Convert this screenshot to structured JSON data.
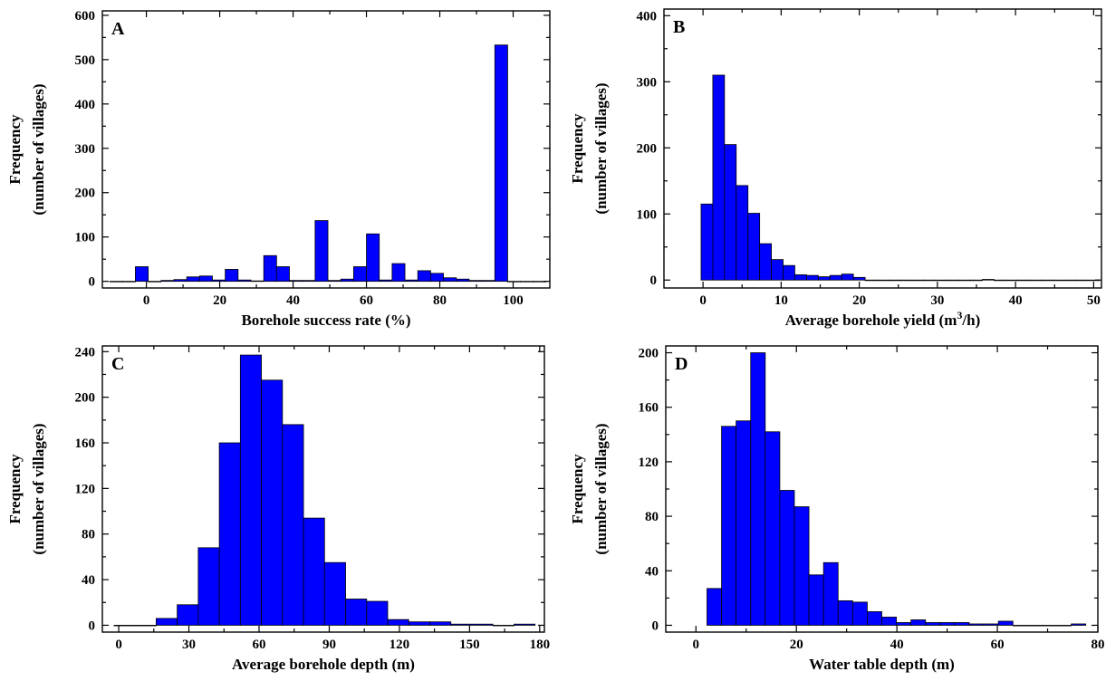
{
  "chart_data": [
    {
      "id": "A",
      "type": "bar",
      "panel_label": "A",
      "xlabel": "Borehole success rate (%)",
      "ylabel": [
        "Frequency",
        "(number of villages)"
      ],
      "xlim": [
        -12,
        110
      ],
      "ylim": [
        -15,
        610
      ],
      "xticks": [
        0,
        20,
        40,
        60,
        80,
        100
      ],
      "yticks": [
        0,
        100,
        200,
        300,
        400,
        500,
        600
      ],
      "bin_width": 3.5,
      "x": [
        -10,
        -6.5,
        -3,
        0.5,
        4,
        7.5,
        11,
        14.5,
        18,
        21.5,
        25,
        28.5,
        32,
        35.5,
        39,
        42.5,
        46,
        49.5,
        53,
        56.5,
        60,
        63.5,
        67,
        70.5,
        74,
        77.5,
        81,
        84.5,
        88,
        91.5,
        95,
        98.5,
        102,
        105.5
      ],
      "values": [
        0,
        0,
        33,
        0,
        2,
        4,
        10,
        12,
        3,
        27,
        3,
        1,
        58,
        33,
        2,
        2,
        137,
        2,
        5,
        33,
        107,
        3,
        40,
        3,
        24,
        18,
        8,
        5,
        2,
        2,
        533,
        0,
        0,
        0
      ]
    },
    {
      "id": "B",
      "type": "bar",
      "panel_label": "B",
      "xlabel_main": "Average borehole yield (m",
      "xlabel_sup": "3",
      "xlabel_tail": "/h)",
      "ylabel": [
        "Frequency",
        "(number of villages)"
      ],
      "xlim": [
        -5,
        51
      ],
      "ylim": [
        -12,
        410
      ],
      "xticks": [
        0,
        10,
        20,
        30,
        40,
        50
      ],
      "yticks": [
        0,
        100,
        200,
        300,
        400
      ],
      "bin_width": 1.5,
      "x": [
        -0.25,
        1.25,
        2.75,
        4.25,
        5.75,
        7.25,
        8.75,
        10.25,
        11.75,
        13.25,
        14.75,
        16.25,
        17.75,
        19.25,
        20.75,
        22.25,
        23.75,
        25.25,
        26.75,
        28.25,
        29.75,
        31.25,
        32.75,
        34.25,
        35.75,
        37.25,
        38.75,
        40.25,
        41.75,
        43.25,
        44.75,
        46.25,
        47.75,
        49.25
      ],
      "values": [
        115,
        310,
        205,
        143,
        101,
        55,
        31,
        22,
        8,
        7,
        5,
        7,
        9,
        4,
        0,
        0,
        0,
        0,
        0,
        0,
        0,
        0,
        0,
        0,
        1,
        0,
        0,
        0,
        0,
        0,
        0,
        0,
        0,
        0
      ]
    },
    {
      "id": "C",
      "type": "bar",
      "panel_label": "C",
      "xlabel": "Average borehole depth (m)",
      "ylabel": [
        "Frequency",
        "(number of villages)"
      ],
      "xlim": [
        -7,
        182
      ],
      "ylim": [
        -6,
        245
      ],
      "xticks": [
        0,
        30,
        60,
        90,
        120,
        150,
        180
      ],
      "yticks": [
        0,
        40,
        80,
        120,
        160,
        200,
        240
      ],
      "bin_width": 9,
      "x": [
        -2,
        7,
        16,
        25,
        34,
        43,
        52,
        61,
        70,
        79,
        88,
        97,
        106,
        115,
        124,
        133,
        142,
        151,
        160,
        169
      ],
      "values": [
        0,
        0,
        6,
        18,
        68,
        160,
        237,
        215,
        176,
        94,
        55,
        23,
        21,
        5,
        3,
        3,
        1,
        1,
        0,
        1
      ]
    },
    {
      "id": "D",
      "type": "bar",
      "panel_label": "D",
      "xlabel": "Water table depth (m)",
      "ylabel": [
        "Frequency",
        "(number of villages)"
      ],
      "xlim": [
        -6,
        80
      ],
      "ylim": [
        -5,
        205
      ],
      "xticks": [
        0,
        20,
        40,
        60,
        80
      ],
      "yticks": [
        0,
        40,
        80,
        120,
        160,
        200
      ],
      "bin_width": 2.9,
      "x": [
        2.2,
        5.1,
        8.0,
        10.9,
        13.8,
        16.7,
        19.6,
        22.5,
        25.4,
        28.3,
        31.2,
        34.1,
        37.0,
        39.9,
        42.8,
        45.7,
        48.6,
        51.5,
        54.4,
        57.3,
        60.2,
        63.1,
        66.0,
        68.9,
        71.8,
        74.7
      ],
      "values": [
        27,
        146,
        150,
        200,
        142,
        99,
        87,
        37,
        46,
        18,
        17,
        10,
        6,
        2,
        4,
        2,
        2,
        2,
        1,
        1,
        3,
        0,
        0,
        0,
        0,
        1
      ]
    }
  ]
}
